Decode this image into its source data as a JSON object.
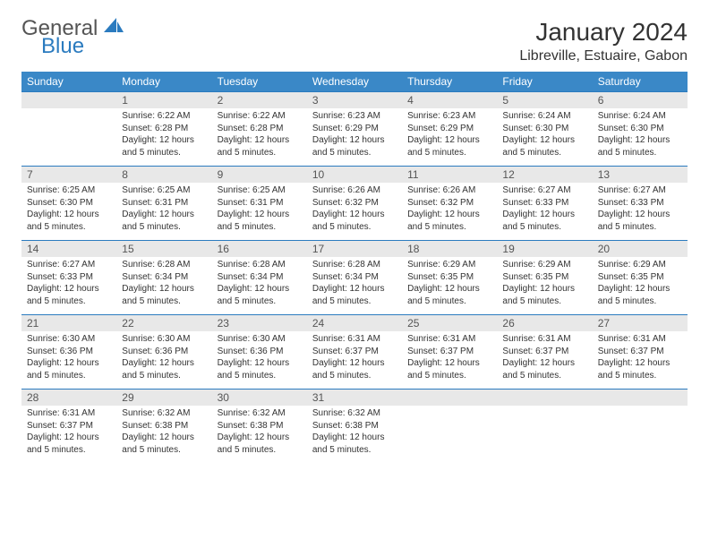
{
  "logo": {
    "text1": "General",
    "text2": "Blue"
  },
  "title": "January 2024",
  "location": "Libreville, Estuaire, Gabon",
  "colors": {
    "header_bg": "#3a88c7",
    "border": "#2b7bbf",
    "daynum_bg": "#e8e8e8",
    "logo_gray": "#555555",
    "logo_blue": "#2b7bbf"
  },
  "day_names": [
    "Sunday",
    "Monday",
    "Tuesday",
    "Wednesday",
    "Thursday",
    "Friday",
    "Saturday"
  ],
  "weeks": [
    [
      null,
      {
        "n": "1",
        "sr": "6:22 AM",
        "ss": "6:28 PM",
        "dl": "12 hours and 5 minutes."
      },
      {
        "n": "2",
        "sr": "6:22 AM",
        "ss": "6:28 PM",
        "dl": "12 hours and 5 minutes."
      },
      {
        "n": "3",
        "sr": "6:23 AM",
        "ss": "6:29 PM",
        "dl": "12 hours and 5 minutes."
      },
      {
        "n": "4",
        "sr": "6:23 AM",
        "ss": "6:29 PM",
        "dl": "12 hours and 5 minutes."
      },
      {
        "n": "5",
        "sr": "6:24 AM",
        "ss": "6:30 PM",
        "dl": "12 hours and 5 minutes."
      },
      {
        "n": "6",
        "sr": "6:24 AM",
        "ss": "6:30 PM",
        "dl": "12 hours and 5 minutes."
      }
    ],
    [
      {
        "n": "7",
        "sr": "6:25 AM",
        "ss": "6:30 PM",
        "dl": "12 hours and 5 minutes."
      },
      {
        "n": "8",
        "sr": "6:25 AM",
        "ss": "6:31 PM",
        "dl": "12 hours and 5 minutes."
      },
      {
        "n": "9",
        "sr": "6:25 AM",
        "ss": "6:31 PM",
        "dl": "12 hours and 5 minutes."
      },
      {
        "n": "10",
        "sr": "6:26 AM",
        "ss": "6:32 PM",
        "dl": "12 hours and 5 minutes."
      },
      {
        "n": "11",
        "sr": "6:26 AM",
        "ss": "6:32 PM",
        "dl": "12 hours and 5 minutes."
      },
      {
        "n": "12",
        "sr": "6:27 AM",
        "ss": "6:33 PM",
        "dl": "12 hours and 5 minutes."
      },
      {
        "n": "13",
        "sr": "6:27 AM",
        "ss": "6:33 PM",
        "dl": "12 hours and 5 minutes."
      }
    ],
    [
      {
        "n": "14",
        "sr": "6:27 AM",
        "ss": "6:33 PM",
        "dl": "12 hours and 5 minutes."
      },
      {
        "n": "15",
        "sr": "6:28 AM",
        "ss": "6:34 PM",
        "dl": "12 hours and 5 minutes."
      },
      {
        "n": "16",
        "sr": "6:28 AM",
        "ss": "6:34 PM",
        "dl": "12 hours and 5 minutes."
      },
      {
        "n": "17",
        "sr": "6:28 AM",
        "ss": "6:34 PM",
        "dl": "12 hours and 5 minutes."
      },
      {
        "n": "18",
        "sr": "6:29 AM",
        "ss": "6:35 PM",
        "dl": "12 hours and 5 minutes."
      },
      {
        "n": "19",
        "sr": "6:29 AM",
        "ss": "6:35 PM",
        "dl": "12 hours and 5 minutes."
      },
      {
        "n": "20",
        "sr": "6:29 AM",
        "ss": "6:35 PM",
        "dl": "12 hours and 5 minutes."
      }
    ],
    [
      {
        "n": "21",
        "sr": "6:30 AM",
        "ss": "6:36 PM",
        "dl": "12 hours and 5 minutes."
      },
      {
        "n": "22",
        "sr": "6:30 AM",
        "ss": "6:36 PM",
        "dl": "12 hours and 5 minutes."
      },
      {
        "n": "23",
        "sr": "6:30 AM",
        "ss": "6:36 PM",
        "dl": "12 hours and 5 minutes."
      },
      {
        "n": "24",
        "sr": "6:31 AM",
        "ss": "6:37 PM",
        "dl": "12 hours and 5 minutes."
      },
      {
        "n": "25",
        "sr": "6:31 AM",
        "ss": "6:37 PM",
        "dl": "12 hours and 5 minutes."
      },
      {
        "n": "26",
        "sr": "6:31 AM",
        "ss": "6:37 PM",
        "dl": "12 hours and 5 minutes."
      },
      {
        "n": "27",
        "sr": "6:31 AM",
        "ss": "6:37 PM",
        "dl": "12 hours and 5 minutes."
      }
    ],
    [
      {
        "n": "28",
        "sr": "6:31 AM",
        "ss": "6:37 PM",
        "dl": "12 hours and 5 minutes."
      },
      {
        "n": "29",
        "sr": "6:32 AM",
        "ss": "6:38 PM",
        "dl": "12 hours and 5 minutes."
      },
      {
        "n": "30",
        "sr": "6:32 AM",
        "ss": "6:38 PM",
        "dl": "12 hours and 5 minutes."
      },
      {
        "n": "31",
        "sr": "6:32 AM",
        "ss": "6:38 PM",
        "dl": "12 hours and 5 minutes."
      },
      null,
      null,
      null
    ]
  ],
  "labels": {
    "sunrise": "Sunrise:",
    "sunset": "Sunset:",
    "daylight": "Daylight:"
  }
}
